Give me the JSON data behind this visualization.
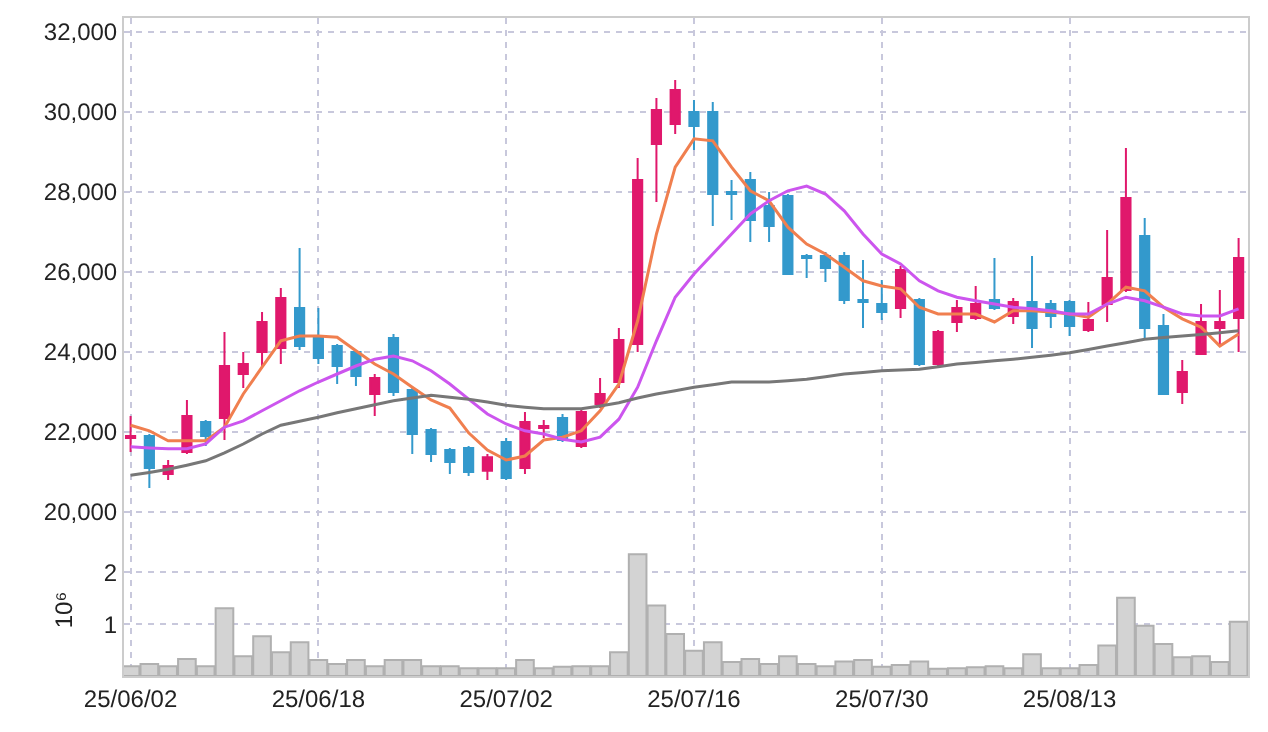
{
  "chart_data": [
    {
      "type": "candlestick",
      "tick_labels": "y",
      "grid": true,
      "categories": [
        null,
        null,
        null,
        null,
        null,
        null,
        null,
        null,
        null,
        null,
        null,
        null,
        null,
        null,
        null,
        null,
        null,
        null,
        null,
        null,
        null,
        null,
        null,
        null,
        null,
        null,
        null,
        null,
        null,
        null,
        null,
        null,
        null,
        null,
        null,
        null,
        null,
        null,
        null,
        null,
        null,
        null,
        null,
        null,
        null,
        null,
        null,
        null,
        null,
        null,
        null,
        null,
        null,
        null,
        null,
        null,
        null,
        null,
        null,
        null
      ],
      "ylim": [
        19200,
        32350
      ],
      "yticks": [
        {
          "value": 20000,
          "label": "20,000"
        },
        {
          "value": 22000,
          "label": "22,000"
        },
        {
          "value": 24000,
          "label": "24,000"
        },
        {
          "value": 26000,
          "label": "26,000"
        },
        {
          "value": 28000,
          "label": "28,000"
        },
        {
          "value": 30000,
          "label": "30,000"
        },
        {
          "value": 32000,
          "label": "32,000"
        }
      ],
      "ohlc": [
        [
          21850,
          22400,
          21500,
          21900
        ],
        [
          21900,
          21950,
          20600,
          21100
        ],
        [
          20950,
          21300,
          20800,
          21150
        ],
        [
          21500,
          22800,
          21450,
          22400
        ],
        [
          22250,
          22300,
          21650,
          21900
        ],
        [
          22350,
          24500,
          21800,
          23650
        ],
        [
          23450,
          24000,
          23100,
          23700
        ],
        [
          24000,
          25000,
          23650,
          24750
        ],
        [
          24100,
          25600,
          23700,
          25350
        ],
        [
          25100,
          26600,
          24050,
          24150
        ],
        [
          24400,
          25100,
          23700,
          23850
        ],
        [
          24150,
          24200,
          23200,
          23650
        ],
        [
          24000,
          24050,
          23150,
          23400
        ],
        [
          22950,
          23450,
          22400,
          23350
        ],
        [
          24350,
          24450,
          22900,
          23000
        ],
        [
          23050,
          23100,
          21450,
          21950
        ],
        [
          22050,
          22100,
          21250,
          21450
        ],
        [
          21550,
          21600,
          20950,
          21250
        ],
        [
          21600,
          21650,
          20900,
          21000
        ],
        [
          21030,
          21450,
          20800,
          21370
        ],
        [
          21750,
          21850,
          20800,
          20850
        ],
        [
          21100,
          22500,
          20950,
          22250
        ],
        [
          22100,
          22300,
          21850,
          22150
        ],
        [
          22350,
          22450,
          21750,
          21800
        ],
        [
          21650,
          22550,
          21600,
          22500
        ],
        [
          22700,
          23350,
          22600,
          22950
        ],
        [
          23250,
          24600,
          23100,
          24300
        ],
        [
          24200,
          28850,
          24000,
          28300
        ],
        [
          29200,
          30350,
          27750,
          30050
        ],
        [
          29700,
          30800,
          29450,
          30550
        ],
        [
          30000,
          30300,
          29050,
          29650
        ],
        [
          30000,
          30250,
          27150,
          27950
        ],
        [
          28000,
          28300,
          27300,
          27950
        ],
        [
          28300,
          28500,
          26750,
          27300
        ],
        [
          27650,
          28000,
          26750,
          27150
        ],
        [
          27900,
          27950,
          25950,
          25950
        ],
        [
          26400,
          26450,
          25850,
          26350
        ],
        [
          26400,
          26500,
          25750,
          26100
        ],
        [
          26400,
          26500,
          25200,
          25300
        ],
        [
          25300,
          26300,
          24600,
          25250
        ],
        [
          25200,
          25800,
          24800,
          25000
        ],
        [
          25100,
          26150,
          24850,
          26050
        ],
        [
          25300,
          25350,
          23650,
          23700
        ],
        [
          23700,
          24550,
          23650,
          24500
        ],
        [
          24750,
          25300,
          24500,
          25100
        ],
        [
          24850,
          25650,
          24800,
          25200
        ],
        [
          25300,
          26350,
          25050,
          25100
        ],
        [
          24900,
          25350,
          24700,
          25250
        ],
        [
          25250,
          26400,
          24100,
          24600
        ],
        [
          25200,
          25300,
          24600,
          24900
        ],
        [
          25250,
          25300,
          24400,
          24650
        ],
        [
          24550,
          25250,
          24500,
          24800
        ],
        [
          25200,
          27050,
          24750,
          25850
        ],
        [
          25550,
          29100,
          25500,
          27850
        ],
        [
          26900,
          27350,
          24350,
          24600
        ],
        [
          24650,
          24950,
          22950,
          22950
        ],
        [
          23000,
          23800,
          22700,
          23500
        ],
        [
          23950,
          25200,
          23950,
          24750
        ],
        [
          24600,
          25550,
          24200,
          24750
        ],
        [
          24850,
          26850,
          24000,
          26350
        ]
      ],
      "colors": [
        "#e0186c",
        "#3399cc",
        "#e0186c",
        "#e0186c",
        "#3399cc",
        "#e0186c",
        "#e0186c",
        "#e0186c",
        "#e0186c",
        "#3399cc",
        "#3399cc",
        "#3399cc",
        "#3399cc",
        "#e0186c",
        "#3399cc",
        "#3399cc",
        "#3399cc",
        "#3399cc",
        "#3399cc",
        "#e0186c",
        "#3399cc",
        "#e0186c",
        "#e0186c",
        "#3399cc",
        "#e0186c",
        "#e0186c",
        "#e0186c",
        "#e0186c",
        "#e0186c",
        "#e0186c",
        "#3399cc",
        "#3399cc",
        "#3399cc",
        "#3399cc",
        "#3399cc",
        "#3399cc",
        "#3399cc",
        "#3399cc",
        "#3399cc",
        "#3399cc",
        "#3399cc",
        "#e0186c",
        "#3399cc",
        "#e0186c",
        "#e0186c",
        "#e0186c",
        "#3399cc",
        "#e0186c",
        "#3399cc",
        "#3399cc",
        "#3399cc",
        "#e0186c",
        "#e0186c",
        "#e0186c",
        "#3399cc",
        "#3399cc",
        "#e0186c",
        "#e0186c",
        "#e0186c",
        "#e0186c"
      ],
      "series": [
        {
          "type": "line",
          "color": "#f07f4f",
          "values": [
            22170,
            22030,
            21780,
            21780,
            21780,
            22120,
            22950,
            23620,
            24280,
            24400,
            24400,
            24370,
            24030,
            23700,
            23450,
            23120,
            22800,
            22600,
            21980,
            21550,
            21300,
            21400,
            21800,
            21870,
            22030,
            22530,
            23200,
            24780,
            26950,
            28620,
            29330,
            29280,
            28620,
            28030,
            27780,
            27120,
            26700,
            26450,
            26120,
            25780,
            25650,
            25580,
            25120,
            24950,
            24950,
            24950,
            24750,
            25030,
            25030,
            25000,
            24950,
            24870,
            25200,
            25620,
            25530,
            25120,
            24830,
            24620,
            24150,
            24450
          ]
        },
        {
          "type": "line",
          "color": "#cc55ee",
          "values": [
            21630,
            21600,
            21580,
            21580,
            21700,
            22120,
            22280,
            22530,
            22780,
            23030,
            23250,
            23450,
            23650,
            23820,
            23900,
            23780,
            23530,
            23200,
            22820,
            22450,
            22200,
            22030,
            21950,
            21820,
            21750,
            21870,
            22320,
            23120,
            24280,
            25370,
            25950,
            26450,
            26950,
            27450,
            27780,
            28030,
            28150,
            27950,
            27530,
            26950,
            26450,
            26200,
            25780,
            25530,
            25370,
            25280,
            25200,
            25120,
            25080,
            25030,
            24950,
            24950,
            25200,
            25370,
            25280,
            25120,
            24950,
            24900,
            24900,
            25080
          ]
        },
        {
          "type": "line",
          "color": "#777777",
          "values": [
            20920,
            20990,
            21070,
            21170,
            21280,
            21480,
            21700,
            21950,
            22170,
            22270,
            22370,
            22480,
            22580,
            22680,
            22780,
            22850,
            22920,
            22870,
            22820,
            22750,
            22670,
            22620,
            22580,
            22580,
            22580,
            22650,
            22730,
            22850,
            22950,
            23030,
            23120,
            23180,
            23250,
            23250,
            23250,
            23280,
            23320,
            23380,
            23450,
            23490,
            23530,
            23550,
            23570,
            23630,
            23700,
            23740,
            23780,
            23820,
            23870,
            23920,
            23980,
            24060,
            24150,
            24230,
            24320,
            24360,
            24400,
            24440,
            24480,
            24530
          ]
        }
      ]
    },
    {
      "type": "bar",
      "grid": true,
      "ylabel": "10⁶",
      "color": "#d3d3d3",
      "categories": [
        "25/06/02",
        null,
        null,
        null,
        null,
        null,
        null,
        null,
        null,
        null,
        "25/06/18",
        null,
        null,
        null,
        null,
        null,
        null,
        null,
        null,
        null,
        "25/07/02",
        null,
        null,
        null,
        null,
        null,
        null,
        null,
        null,
        null,
        "25/07/16",
        null,
        null,
        null,
        null,
        null,
        null,
        null,
        null,
        null,
        "25/07/30",
        null,
        null,
        null,
        null,
        null,
        null,
        null,
        null,
        null,
        "25/08/13",
        null,
        null,
        null,
        null,
        null,
        null,
        null,
        null,
        null
      ],
      "ylim": [
        0,
        2.55
      ],
      "yticks": [
        1,
        2
      ],
      "values": [
        0.19,
        0.23,
        0.19,
        0.33,
        0.19,
        1.31,
        0.38,
        0.77,
        0.46,
        0.65,
        0.31,
        0.23,
        0.31,
        0.19,
        0.31,
        0.31,
        0.19,
        0.19,
        0.15,
        0.15,
        0.15,
        0.31,
        0.15,
        0.18,
        0.19,
        0.19,
        0.46,
        2.35,
        1.36,
        0.81,
        0.49,
        0.65,
        0.27,
        0.33,
        0.23,
        0.38,
        0.23,
        0.19,
        0.28,
        0.31,
        0.18,
        0.21,
        0.28,
        0.14,
        0.15,
        0.17,
        0.19,
        0.15,
        0.42,
        0.15,
        0.15,
        0.21,
        0.59,
        1.51,
        0.97,
        0.62,
        0.36,
        0.38,
        0.27,
        1.05
      ]
    }
  ]
}
